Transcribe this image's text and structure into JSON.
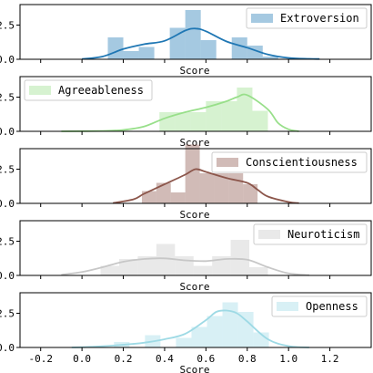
{
  "chart_data": [
    {
      "type": "bar",
      "legend": "Extroversion",
      "legend_position": "top-right",
      "color": "#1f77b4",
      "xlabel": "Score",
      "ylabel": "",
      "xlim": [
        -0.3,
        1.4
      ],
      "ylim": [
        0,
        4.0
      ],
      "xticks": [
        "-0.2",
        "0.0",
        "0.2",
        "0.4",
        "0.6",
        "0.8",
        "1.0",
        "1.2"
      ],
      "yticks": [
        "0.0",
        "2.5"
      ],
      "bins": [
        [
          0.125,
          0.2,
          1.6
        ],
        [
          0.2,
          0.275,
          0.6
        ],
        [
          0.275,
          0.35,
          0.9
        ],
        [
          0.35,
          0.425,
          0.0
        ],
        [
          0.425,
          0.5,
          2.3
        ],
        [
          0.5,
          0.575,
          3.6
        ],
        [
          0.575,
          0.65,
          1.4
        ],
        [
          0.65,
          0.725,
          0.0
        ],
        [
          0.725,
          0.8,
          1.6
        ],
        [
          0.8,
          0.875,
          1.0
        ],
        [
          0.875,
          0.95,
          0.2
        ]
      ],
      "kde": {
        "x": [
          0.0,
          0.1,
          0.2,
          0.3,
          0.4,
          0.5,
          0.55,
          0.6,
          0.7,
          0.8,
          0.9,
          1.0,
          1.1,
          1.15
        ],
        "y": [
          0.02,
          0.2,
          0.75,
          1.1,
          1.35,
          2.1,
          2.25,
          2.05,
          1.3,
          0.85,
          0.35,
          0.1,
          0.03,
          0.02
        ]
      }
    },
    {
      "type": "bar",
      "legend": "Agreeableness",
      "legend_position": "top-left",
      "color": "#98df8a",
      "xlabel": "Score",
      "ylabel": "",
      "xlim": [
        -0.3,
        1.4
      ],
      "ylim": [
        0,
        4.0
      ],
      "xticks": [
        "-0.2",
        "0.0",
        "0.2",
        "0.4",
        "0.6",
        "0.8",
        "1.0",
        "1.2"
      ],
      "yticks": [
        "0.0",
        "2.5"
      ],
      "bins": [
        [
          0.375,
          0.45,
          1.4
        ],
        [
          0.45,
          0.525,
          1.4
        ],
        [
          0.525,
          0.6,
          1.4
        ],
        [
          0.6,
          0.675,
          2.2
        ],
        [
          0.675,
          0.75,
          2.2
        ],
        [
          0.75,
          0.825,
          3.2
        ],
        [
          0.825,
          0.9,
          1.5
        ]
      ],
      "kde": {
        "x": [
          -0.1,
          0.1,
          0.2,
          0.3,
          0.4,
          0.5,
          0.6,
          0.7,
          0.75,
          0.8,
          0.9,
          0.95,
          1.0,
          1.05
        ],
        "y": [
          0.0,
          0.03,
          0.1,
          0.35,
          0.95,
          1.4,
          1.75,
          2.2,
          2.5,
          2.65,
          1.6,
          0.6,
          0.15,
          0.0
        ]
      }
    },
    {
      "type": "bar",
      "legend": "Conscientiousness",
      "legend_position": "top-right",
      "color": "#8c564b",
      "xlabel": "Score",
      "ylabel": "",
      "xlim": [
        -0.3,
        1.4
      ],
      "ylim": [
        0,
        4.0
      ],
      "xticks": [
        "-0.2",
        "0.0",
        "0.2",
        "0.4",
        "0.6",
        "0.8",
        "1.0",
        "1.2"
      ],
      "yticks": [
        "0.0",
        "2.5"
      ],
      "bins": [
        [
          0.29,
          0.36,
          0.9
        ],
        [
          0.36,
          0.43,
          1.5
        ],
        [
          0.43,
          0.5,
          0.8
        ],
        [
          0.5,
          0.57,
          4.3
        ],
        [
          0.57,
          0.64,
          2.2
        ],
        [
          0.64,
          0.71,
          2.2
        ],
        [
          0.71,
          0.78,
          2.2
        ],
        [
          0.78,
          0.85,
          1.4
        ]
      ],
      "kde": {
        "x": [
          0.15,
          0.25,
          0.3,
          0.4,
          0.5,
          0.55,
          0.6,
          0.7,
          0.8,
          0.85,
          0.9,
          1.0,
          1.05
        ],
        "y": [
          0.02,
          0.3,
          0.7,
          1.4,
          2.1,
          2.5,
          2.3,
          1.85,
          1.5,
          1.0,
          0.5,
          0.1,
          0.02
        ]
      }
    },
    {
      "type": "bar",
      "legend": "Neuroticism",
      "legend_position": "top-right",
      "color": "#c7c7c7",
      "xlabel": "Score",
      "ylabel": "",
      "xlim": [
        -0.3,
        1.4
      ],
      "ylim": [
        0,
        4.0
      ],
      "xticks": [
        "-0.2",
        "0.0",
        "0.2",
        "0.4",
        "0.6",
        "0.8",
        "1.0",
        "1.2"
      ],
      "yticks": [
        "0.0",
        "2.5"
      ],
      "bins": [
        [
          0.09,
          0.18,
          0.7
        ],
        [
          0.18,
          0.27,
          1.2
        ],
        [
          0.27,
          0.36,
          1.4
        ],
        [
          0.36,
          0.45,
          2.3
        ],
        [
          0.45,
          0.54,
          1.4
        ],
        [
          0.54,
          0.63,
          0.7
        ],
        [
          0.63,
          0.72,
          1.4
        ],
        [
          0.72,
          0.81,
          2.6
        ],
        [
          0.81,
          0.9,
          0.6
        ]
      ],
      "kde": {
        "x": [
          -0.1,
          0.0,
          0.1,
          0.2,
          0.3,
          0.4,
          0.5,
          0.6,
          0.7,
          0.8,
          0.9,
          1.0,
          1.1
        ],
        "y": [
          0.05,
          0.25,
          0.6,
          1.0,
          1.2,
          1.25,
          1.1,
          1.05,
          1.2,
          1.15,
          0.6,
          0.15,
          0.02
        ]
      }
    },
    {
      "type": "bar",
      "legend": "Openness",
      "legend_position": "top-right",
      "color": "#9edae5",
      "xlabel": "Score",
      "ylabel": "",
      "xlim": [
        -0.3,
        1.4
      ],
      "ylim": [
        0,
        4.0
      ],
      "xticks": [
        "-0.2",
        "0.0",
        "0.2",
        "0.4",
        "0.6",
        "0.8",
        "1.0",
        "1.2"
      ],
      "yticks": [
        "0.0",
        "2.5"
      ],
      "bins": [
        [
          0.155,
          0.23,
          0.4
        ],
        [
          0.23,
          0.305,
          0.0
        ],
        [
          0.305,
          0.38,
          0.9
        ],
        [
          0.38,
          0.455,
          0.0
        ],
        [
          0.455,
          0.53,
          0.7
        ],
        [
          0.53,
          0.605,
          1.5
        ],
        [
          0.605,
          0.68,
          2.3
        ],
        [
          0.68,
          0.755,
          3.3
        ],
        [
          0.755,
          0.83,
          2.6
        ],
        [
          0.83,
          0.905,
          1.1
        ]
      ],
      "kde": {
        "x": [
          -0.05,
          0.05,
          0.2,
          0.3,
          0.4,
          0.5,
          0.6,
          0.65,
          0.7,
          0.75,
          0.8,
          0.9,
          1.0,
          1.1
        ],
        "y": [
          0.0,
          0.05,
          0.2,
          0.35,
          0.6,
          1.0,
          2.0,
          2.6,
          2.7,
          2.5,
          1.9,
          0.6,
          0.1,
          0.0
        ]
      }
    }
  ]
}
